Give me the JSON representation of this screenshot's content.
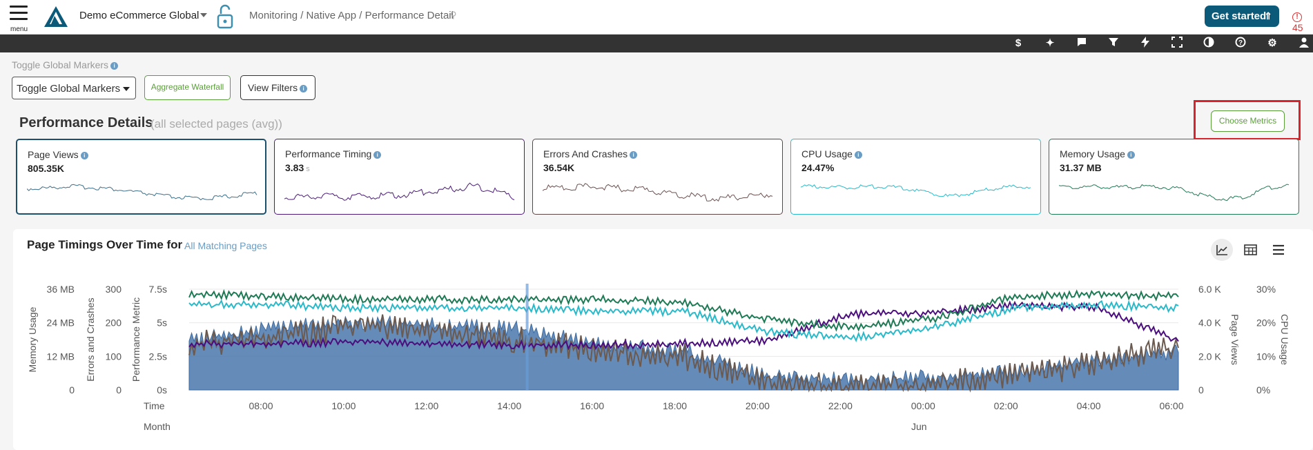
{
  "topbar": {
    "menu_label": "menu",
    "org_name": "Demo eCommerce Global",
    "breadcrumb": "Monitoring / Native App / Performance Detail",
    "get_started": "Get started",
    "alert_count": "45"
  },
  "toolbar": {
    "icons": [
      "dollar-icon",
      "sparkle-icon",
      "chat-icon",
      "filter-icon",
      "bolt-icon",
      "fullscreen-icon",
      "contrast-icon",
      "help-icon",
      "gear-icon",
      "user-icon"
    ]
  },
  "controls": {
    "toggle_label": "Toggle Global Markers",
    "select_value": "Toggle Global Markers",
    "aggregate_waterfall": "Aggregate Waterfall",
    "view_filters": "View Filters"
  },
  "performance": {
    "title": "Performance Details",
    "subtitle": "(all selected pages (avg))",
    "choose_metrics": "Choose Metrics",
    "cards": [
      {
        "title": "Page Views",
        "value": "805.35K",
        "unit": "",
        "color": "#1b4f6b",
        "spark": "#3d6f8a"
      },
      {
        "title": "Performance Timing",
        "value": "3.83",
        "unit": "s",
        "color": "#4b1a78",
        "spark": "#4b1a78"
      },
      {
        "title": "Errors And Crashes",
        "value": "36.54K",
        "unit": "",
        "color": "#5a4545",
        "spark": "#6b5050"
      },
      {
        "title": "CPU Usage",
        "value": "24.47%",
        "unit": "",
        "color": "#2ab9c8",
        "spark": "#2ab9c8"
      },
      {
        "title": "Memory Usage",
        "value": "31.37 MB",
        "unit": "",
        "color": "#1e7a55",
        "spark": "#1e7a55"
      }
    ]
  },
  "timings": {
    "title": "Page Timings Over Time for",
    "link": "All Matching Pages"
  },
  "chart_data": {
    "type": "line",
    "x_ticks": [
      "08:00",
      "10:00",
      "12:00",
      "14:00",
      "16:00",
      "18:00",
      "20:00",
      "22:00",
      "00:00",
      "02:00",
      "04:00",
      "06:00"
    ],
    "x_axis_label": "Time",
    "x_secondary_label": "Month",
    "x_secondary_tick": "Jun",
    "left_axes": [
      {
        "label": "Memory Usage",
        "ticks": [
          "36 MB",
          "24 MB",
          "12 MB",
          "0"
        ]
      },
      {
        "label": "Errors and Crashes",
        "ticks": [
          "300",
          "200",
          "100",
          "0"
        ]
      },
      {
        "label": "Performance Metric",
        "ticks": [
          "7.5s",
          "5s",
          "2.5s",
          "0s"
        ]
      }
    ],
    "right_axes": [
      {
        "label": "Page Views",
        "ticks": [
          "6.0 K",
          "4.0 K",
          "2.0 K",
          "0"
        ]
      },
      {
        "label": "CPU Usage",
        "ticks": [
          "30%",
          "20%",
          "10%",
          "0%"
        ]
      }
    ],
    "series": [
      {
        "name": "Page Views",
        "color": "#4a77ad",
        "kind": "area",
        "x": [
          0,
          1,
          2,
          3,
          4,
          5,
          6,
          7,
          8,
          9,
          10,
          11,
          12
        ],
        "y": [
          3.2,
          3.9,
          4.3,
          4.1,
          3.9,
          2.9,
          2.6,
          1.1,
          0.8,
          1.0,
          1.3,
          2.0,
          2.5
        ]
      },
      {
        "name": "Errors and Crashes",
        "color": "#6b5a50",
        "kind": "line",
        "x": [
          0,
          1,
          2,
          3,
          4,
          5,
          6,
          7,
          8,
          9,
          10,
          11,
          12
        ],
        "y": [
          160,
          180,
          210,
          200,
          170,
          140,
          120,
          40,
          30,
          35,
          60,
          100,
          150
        ]
      },
      {
        "name": "Performance Metric",
        "color": "#4b0f7d",
        "kind": "line",
        "x": [
          0,
          1,
          2,
          3,
          4,
          5,
          6,
          7,
          8,
          9,
          10,
          11,
          12
        ],
        "y": [
          3.6,
          3.6,
          3.7,
          3.6,
          3.5,
          3.5,
          3.6,
          3.8,
          5.8,
          5.9,
          6.4,
          6.3,
          3.8
        ]
      },
      {
        "name": "Memory Usage",
        "color": "#1e7a55",
        "kind": "line",
        "x": [
          0,
          1,
          2,
          3,
          4,
          5,
          6,
          7,
          8,
          9,
          10,
          11,
          12
        ],
        "y": [
          35,
          34,
          33,
          33,
          33,
          33,
          32,
          26,
          23,
          26,
          34,
          35,
          34
        ]
      },
      {
        "name": "CPU Usage",
        "color": "#2ab9c8",
        "kind": "line",
        "x": [
          0,
          1,
          2,
          3,
          4,
          5,
          6,
          7,
          8,
          9,
          10,
          11,
          12
        ],
        "y": [
          26,
          26,
          25,
          25,
          25,
          24,
          24,
          18,
          16,
          19,
          25,
          26,
          25
        ]
      }
    ],
    "marker_x": 4.1
  }
}
